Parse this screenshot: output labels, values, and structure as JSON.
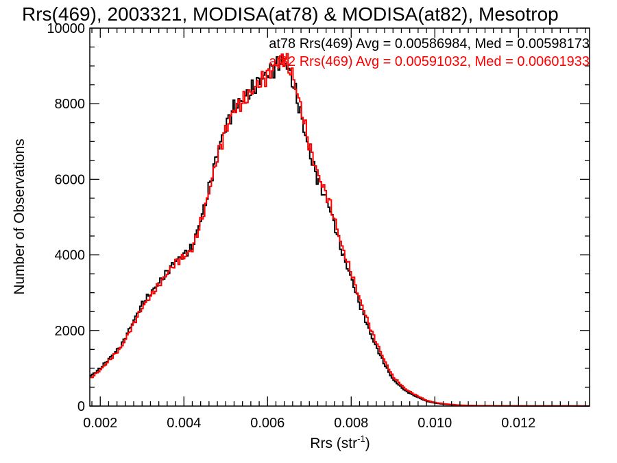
{
  "chart_data": {
    "type": "histogram",
    "title": "Rrs(469), 2003321, MODISA(at78) & MODISA(at82), Mesotrop",
    "xlabel_main": "Rrs (str",
    "xlabel_sup": "-1",
    "xlabel_close": ")",
    "ylabel": "Number of Observations",
    "xlim": [
      0.00175,
      0.0137
    ],
    "ylim": [
      0,
      10000
    ],
    "x_ticks": [
      0.002,
      0.004,
      0.006,
      0.008,
      0.01,
      0.012
    ],
    "x_tick_labels": [
      "0.002",
      "0.004",
      "0.006",
      "0.008",
      "0.010",
      "0.012"
    ],
    "y_ticks": [
      0,
      2000,
      4000,
      6000,
      8000,
      10000
    ],
    "y_tick_labels": [
      "0",
      "2000",
      "4000",
      "6000",
      "8000",
      "10000"
    ],
    "grid": false,
    "legend_position": "top-right",
    "series": [
      {
        "name": "at78",
        "color": "#000000",
        "legend_text": "at78 Rrs(469) Avg = 0.00586984, Med = 0.00598173",
        "anchors": [
          [
            0.00175,
            780
          ],
          [
            0.002,
            1000
          ],
          [
            0.0025,
            1600
          ],
          [
            0.003,
            2700
          ],
          [
            0.0035,
            3400
          ],
          [
            0.0038,
            3850
          ],
          [
            0.004,
            4000
          ],
          [
            0.0042,
            4200
          ],
          [
            0.0045,
            5300
          ],
          [
            0.0048,
            6700
          ],
          [
            0.005,
            7400
          ],
          [
            0.0052,
            7900
          ],
          [
            0.0055,
            8200
          ],
          [
            0.0058,
            8600
          ],
          [
            0.006,
            8800
          ],
          [
            0.0062,
            9000
          ],
          [
            0.0064,
            9200
          ],
          [
            0.0066,
            8600
          ],
          [
            0.0068,
            7700
          ],
          [
            0.007,
            6700
          ],
          [
            0.0072,
            6000
          ],
          [
            0.0075,
            5200
          ],
          [
            0.0078,
            4000
          ],
          [
            0.008,
            3400
          ],
          [
            0.0082,
            2700
          ],
          [
            0.0085,
            1800
          ],
          [
            0.0088,
            1100
          ],
          [
            0.009,
            700
          ],
          [
            0.0093,
            400
          ],
          [
            0.0095,
            280
          ],
          [
            0.0098,
            130
          ],
          [
            0.01,
            80
          ],
          [
            0.0103,
            40
          ],
          [
            0.0106,
            20
          ],
          [
            0.011,
            10
          ],
          [
            0.012,
            5
          ],
          [
            0.0137,
            3
          ]
        ]
      },
      {
        "name": "at82",
        "color": "#ff0000",
        "legend_text": "at82 Rrs(469) Avg = 0.00591032, Med = 0.00601933",
        "anchors": [
          [
            0.00175,
            720
          ],
          [
            0.002,
            950
          ],
          [
            0.0025,
            1550
          ],
          [
            0.003,
            2600
          ],
          [
            0.0035,
            3350
          ],
          [
            0.0038,
            3800
          ],
          [
            0.004,
            3950
          ],
          [
            0.0042,
            4150
          ],
          [
            0.0045,
            5200
          ],
          [
            0.0048,
            6600
          ],
          [
            0.005,
            7300
          ],
          [
            0.0052,
            7850
          ],
          [
            0.0055,
            8150
          ],
          [
            0.0058,
            8550
          ],
          [
            0.006,
            8750
          ],
          [
            0.0062,
            9000
          ],
          [
            0.0064,
            9250
          ],
          [
            0.0066,
            8750
          ],
          [
            0.0068,
            7900
          ],
          [
            0.007,
            6900
          ],
          [
            0.0072,
            6150
          ],
          [
            0.0075,
            5350
          ],
          [
            0.0078,
            4150
          ],
          [
            0.008,
            3550
          ],
          [
            0.0082,
            2850
          ],
          [
            0.0085,
            1950
          ],
          [
            0.0088,
            1200
          ],
          [
            0.009,
            780
          ],
          [
            0.0093,
            450
          ],
          [
            0.0095,
            320
          ],
          [
            0.0098,
            150
          ],
          [
            0.01,
            95
          ],
          [
            0.0103,
            50
          ],
          [
            0.0106,
            25
          ],
          [
            0.011,
            12
          ],
          [
            0.012,
            6
          ],
          [
            0.0137,
            3
          ]
        ]
      }
    ]
  }
}
